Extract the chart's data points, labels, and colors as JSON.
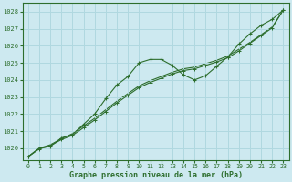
{
  "bg_color": "#cde9f0",
  "grid_color": "#b0d8e0",
  "line_color": "#2d6e2d",
  "xlabel": "Graphe pression niveau de la mer (hPa)",
  "xlabel_color": "#2d6e2d",
  "ylim": [
    1019.3,
    1028.5
  ],
  "xlim": [
    -0.5,
    23.5
  ],
  "yticks": [
    1020,
    1021,
    1022,
    1023,
    1024,
    1025,
    1026,
    1027,
    1028
  ],
  "xticks": [
    0,
    1,
    2,
    3,
    4,
    5,
    6,
    7,
    8,
    9,
    10,
    11,
    12,
    13,
    14,
    15,
    16,
    17,
    18,
    19,
    20,
    21,
    22,
    23
  ],
  "series1_x": [
    0,
    1,
    2,
    3,
    4,
    5,
    6,
    7,
    8,
    9,
    10,
    11,
    12,
    13,
    14,
    15,
    16,
    17,
    18,
    19,
    20,
    21,
    22,
    23
  ],
  "series1_y": [
    1019.5,
    1020.0,
    1020.1,
    1020.6,
    1020.8,
    1021.4,
    1022.0,
    1022.9,
    1023.7,
    1024.2,
    1025.0,
    1025.2,
    1025.2,
    1024.85,
    1024.3,
    1024.0,
    1024.25,
    1024.8,
    1025.35,
    1026.1,
    1026.7,
    1027.2,
    1027.55,
    1028.1
  ],
  "series2_x": [
    0,
    1,
    2,
    3,
    4,
    5,
    6,
    7,
    8,
    9,
    10,
    11,
    12,
    13,
    14,
    15,
    16,
    17,
    18,
    19,
    20,
    21,
    22,
    23
  ],
  "series2_y": [
    1019.5,
    1019.95,
    1020.15,
    1020.5,
    1020.75,
    1021.2,
    1021.65,
    1022.15,
    1022.65,
    1023.1,
    1023.55,
    1023.85,
    1024.1,
    1024.35,
    1024.55,
    1024.65,
    1024.85,
    1025.05,
    1025.3,
    1025.7,
    1026.15,
    1026.6,
    1027.05,
    1028.1
  ],
  "series3_x": [
    0,
    1,
    2,
    3,
    4,
    5,
    6,
    7,
    8,
    9,
    10,
    11,
    12,
    13,
    14,
    15,
    16,
    17,
    18,
    19,
    20,
    21,
    22,
    23
  ],
  "series3_y": [
    1019.5,
    1020.0,
    1020.2,
    1020.55,
    1020.85,
    1021.3,
    1021.75,
    1022.25,
    1022.75,
    1023.2,
    1023.65,
    1023.95,
    1024.2,
    1024.45,
    1024.65,
    1024.75,
    1024.95,
    1025.15,
    1025.4,
    1025.8,
    1026.2,
    1026.65,
    1027.1,
    1028.1
  ]
}
